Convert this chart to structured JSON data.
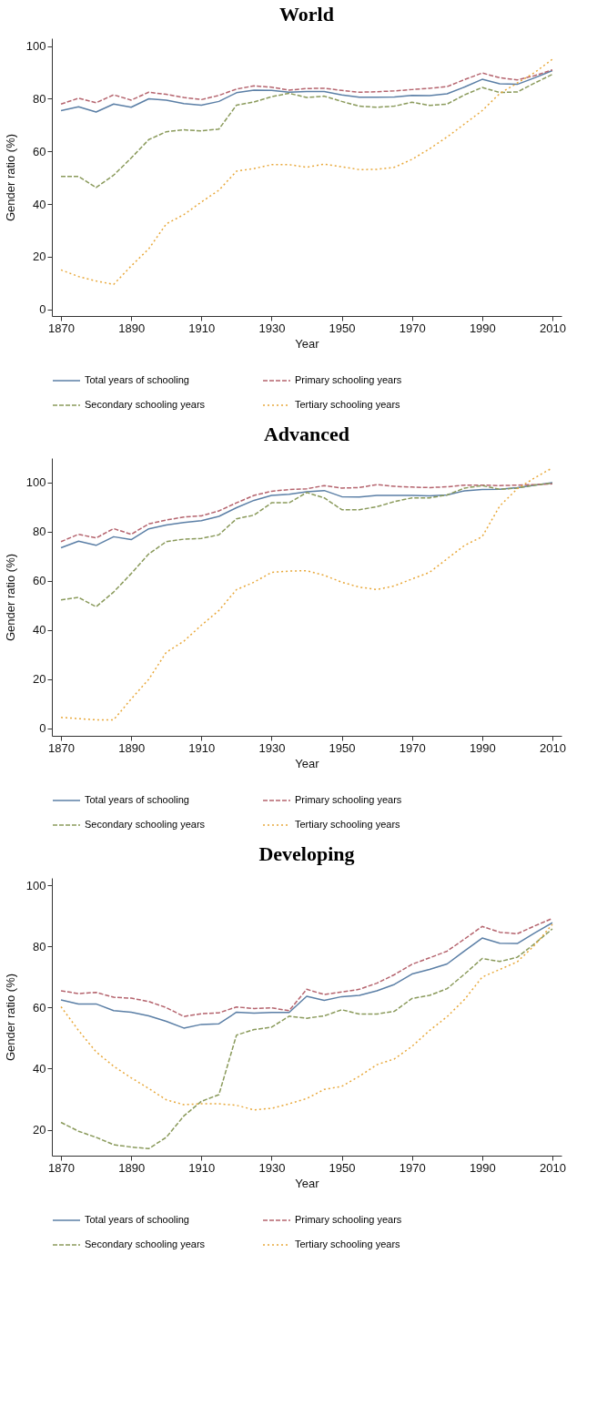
{
  "chart_data": [
    {
      "type": "line",
      "title": "World",
      "xlabel": "Year",
      "ylabel": "Gender ratio (%)",
      "x": [
        1870,
        1875,
        1880,
        1885,
        1890,
        1895,
        1900,
        1905,
        1910,
        1915,
        1920,
        1925,
        1930,
        1935,
        1940,
        1945,
        1950,
        1955,
        1960,
        1965,
        1970,
        1975,
        1980,
        1985,
        1990,
        1995,
        2000,
        2005,
        2010
      ],
      "xlim": [
        1867.4,
        2012.6
      ],
      "xticks": [
        1870,
        1890,
        1910,
        1930,
        1950,
        1970,
        1990,
        2010
      ],
      "ylim": [
        -2.5,
        103
      ],
      "yticks": [
        0,
        20,
        40,
        60,
        80,
        100
      ],
      "grid": false,
      "legend": "bottom",
      "series": [
        {
          "name": "Total years of schooling",
          "color": "#5b7fa6",
          "line_style": "solid",
          "values": [
            75.5,
            77,
            75,
            78,
            76.8,
            80,
            79.5,
            78.2,
            77.6,
            79,
            82.3,
            83.3,
            83.2,
            82.5,
            82.8,
            82.8,
            81.5,
            80.6,
            80.6,
            80.7,
            81.3,
            81.2,
            81.9,
            84.5,
            87.4,
            85.7,
            85.5,
            88,
            90.7
          ]
        },
        {
          "name": "Primary schooling years",
          "color": "#b5646e",
          "line_style": "dashed",
          "values": [
            78,
            80.2,
            78.5,
            81.5,
            79.5,
            82.5,
            81.7,
            80.5,
            79.7,
            81.3,
            83.7,
            84.9,
            84.4,
            83.3,
            83.9,
            84,
            83.2,
            82.5,
            82.7,
            83,
            83.5,
            84,
            84.6,
            87.3,
            89.8,
            88,
            87.2,
            88.8,
            91
          ]
        },
        {
          "name": "Secondary schooling years",
          "color": "#8a9a5b",
          "line_style": "dashed",
          "values": [
            50.5,
            50.5,
            46.3,
            51,
            57.5,
            64.5,
            67.5,
            68.2,
            67.8,
            68.5,
            77.6,
            78.8,
            80.8,
            82.1,
            80.5,
            81,
            79,
            77.2,
            76.8,
            77.2,
            78.7,
            77.5,
            78,
            81.5,
            84.3,
            82.4,
            82.6,
            86,
            89.3
          ]
        },
        {
          "name": "Tertiary schooling years",
          "color": "#e8a83a",
          "line_style": "dotted",
          "values": [
            15,
            12.5,
            10.8,
            9.5,
            16.5,
            23,
            32.5,
            36,
            40.8,
            45.3,
            52.5,
            53.5,
            55,
            55,
            54,
            55.2,
            54.2,
            53.1,
            53.2,
            54,
            57,
            61,
            65.5,
            70.5,
            75.5,
            82,
            86,
            90,
            95
          ]
        }
      ]
    },
    {
      "type": "line",
      "title": "Advanced",
      "xlabel": "Year",
      "ylabel": "Gender ratio (%)",
      "x": [
        1870,
        1875,
        1880,
        1885,
        1890,
        1895,
        1900,
        1905,
        1910,
        1915,
        1920,
        1925,
        1930,
        1935,
        1940,
        1945,
        1950,
        1955,
        1960,
        1965,
        1970,
        1975,
        1980,
        1985,
        1990,
        1995,
        2000,
        2005,
        2010
      ],
      "xlim": [
        1867.4,
        2012.6
      ],
      "xticks": [
        1870,
        1890,
        1910,
        1930,
        1950,
        1970,
        1990,
        2010
      ],
      "ylim": [
        -3,
        110
      ],
      "yticks": [
        0,
        20,
        40,
        60,
        80,
        100
      ],
      "grid": false,
      "legend": "bottom",
      "series": [
        {
          "name": "Total years of schooling",
          "color": "#5b7fa6",
          "line_style": "solid",
          "values": [
            73.5,
            76.2,
            74.5,
            78,
            76.8,
            81.2,
            82.8,
            83.8,
            84.5,
            86.3,
            89.8,
            92.8,
            94.8,
            95.3,
            96.3,
            96.8,
            94.3,
            94.2,
            94.8,
            94.8,
            94.8,
            94.6,
            95,
            96.7,
            97.2,
            97.3,
            98,
            99,
            100
          ]
        },
        {
          "name": "Primary schooling years",
          "color": "#b5646e",
          "line_style": "dashed",
          "values": [
            76,
            79,
            77.5,
            81.3,
            79,
            83.2,
            84.8,
            86,
            86.5,
            88.5,
            91.8,
            94.8,
            96.5,
            97.2,
            97.5,
            98.8,
            97.8,
            98,
            99.2,
            98.5,
            98.2,
            98,
            98.3,
            99,
            99,
            98.8,
            99,
            99.2,
            99.5
          ]
        },
        {
          "name": "Secondary schooling years",
          "color": "#8a9a5b",
          "line_style": "dashed",
          "values": [
            52.3,
            53.3,
            49.5,
            55.5,
            63,
            71,
            76,
            77,
            77.3,
            78.8,
            85.3,
            86.8,
            91.8,
            91.8,
            96,
            93.8,
            89,
            89,
            90.2,
            92.3,
            93.8,
            93.8,
            95,
            97.8,
            98.8,
            97.3,
            97.8,
            99,
            99.8
          ]
        },
        {
          "name": "Tertiary schooling years",
          "color": "#e8a83a",
          "line_style": "dotted",
          "values": [
            4.5,
            4,
            3.5,
            3.5,
            12,
            20,
            31,
            35.5,
            42,
            48,
            56.5,
            59.5,
            63.5,
            64,
            64.2,
            62.3,
            59.5,
            57.5,
            56.5,
            58,
            60.8,
            63.5,
            69,
            74.5,
            78,
            90.5,
            97.5,
            102,
            106
          ]
        }
      ]
    },
    {
      "type": "line",
      "title": "Developing",
      "xlabel": "Year",
      "ylabel": "Gender ratio (%)",
      "x": [
        1870,
        1875,
        1880,
        1885,
        1890,
        1895,
        1900,
        1905,
        1910,
        1915,
        1920,
        1925,
        1930,
        1935,
        1940,
        1945,
        1950,
        1955,
        1960,
        1965,
        1970,
        1975,
        1980,
        1985,
        1990,
        1995,
        2000,
        2005,
        2010
      ],
      "xlim": [
        1867.4,
        2012.6
      ],
      "xticks": [
        1870,
        1890,
        1910,
        1930,
        1950,
        1970,
        1990,
        2010
      ],
      "ylim": [
        11.5,
        102.5
      ],
      "yticks": [
        20,
        40,
        60,
        80,
        100
      ],
      "grid": false,
      "legend": "bottom",
      "series": [
        {
          "name": "Total years of schooling",
          "color": "#5b7fa6",
          "line_style": "solid",
          "values": [
            62.5,
            61.2,
            61.2,
            59,
            58.5,
            57.3,
            55.5,
            53.3,
            54.5,
            54.7,
            58.5,
            58.2,
            58.4,
            58.4,
            63.7,
            62.4,
            63.6,
            64,
            65.5,
            67.6,
            71,
            72.5,
            74.3,
            78.6,
            82.8,
            81.1,
            81,
            84.5,
            87.8
          ]
        },
        {
          "name": "Primary schooling years",
          "color": "#b5646e",
          "line_style": "dashed",
          "values": [
            65.5,
            64.6,
            65,
            63.4,
            63.1,
            62,
            60,
            57.1,
            58,
            58.3,
            60.2,
            59.7,
            59.9,
            59,
            66,
            64.3,
            65.1,
            66,
            68,
            70.8,
            74.2,
            76.3,
            78.5,
            82.5,
            86.6,
            84.7,
            84.2,
            86.8,
            89.2
          ]
        },
        {
          "name": "Secondary schooling years",
          "color": "#8a9a5b",
          "line_style": "dashed",
          "values": [
            22.4,
            19.5,
            17.5,
            15.1,
            14.3,
            13.8,
            17.5,
            24.5,
            29.3,
            31.5,
            51,
            52.8,
            53.6,
            57.2,
            56.5,
            57.3,
            59.3,
            57.9,
            57.9,
            58.8,
            63,
            64,
            66.2,
            71,
            76.1,
            75.1,
            76.5,
            81,
            85.8
          ]
        },
        {
          "name": "Tertiary schooling years",
          "color": "#e8a83a",
          "line_style": "dotted",
          "values": [
            60.3,
            52.5,
            45.5,
            40.8,
            37,
            33.5,
            29.8,
            28.2,
            28.5,
            28.5,
            28,
            26.5,
            27,
            28.5,
            30.2,
            33.2,
            34.2,
            37.5,
            41.3,
            43.2,
            47.3,
            52.5,
            57,
            62.7,
            70,
            72.5,
            75,
            80.5,
            87.3
          ]
        }
      ]
    }
  ]
}
